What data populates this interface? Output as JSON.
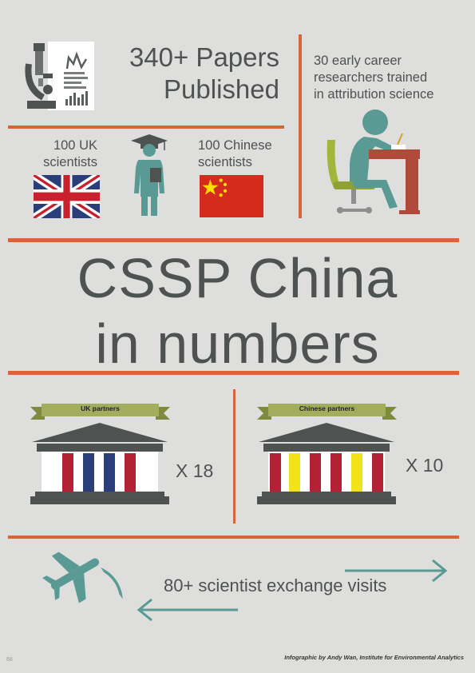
{
  "papers": {
    "line1": "340+ Papers",
    "line2": "Published"
  },
  "researchers": {
    "line1": "30 early career",
    "line2": "researchers trained",
    "line3": "in attribution science"
  },
  "uk_scientists": {
    "line1": "100 UK",
    "line2": "scientists"
  },
  "chinese_scientists": {
    "line1": "100 Chinese",
    "line2": "scientists"
  },
  "title": {
    "line1": "CSSP China",
    "line2": "in numbers"
  },
  "uk_partners": {
    "label": "UK partners",
    "count": "X 18"
  },
  "chinese_partners": {
    "label": "Chinese partners",
    "count": "X 10"
  },
  "exchange": {
    "text": "80+ scientist exchange visits"
  },
  "credit": "Infographic by Andy Wan, Institute for Environmental Analytics",
  "page_number": "68",
  "colors": {
    "accent": "#d4663a",
    "teal": "#5a9a94",
    "text": "#4e5251",
    "ribbon": "#a2ad5e"
  }
}
